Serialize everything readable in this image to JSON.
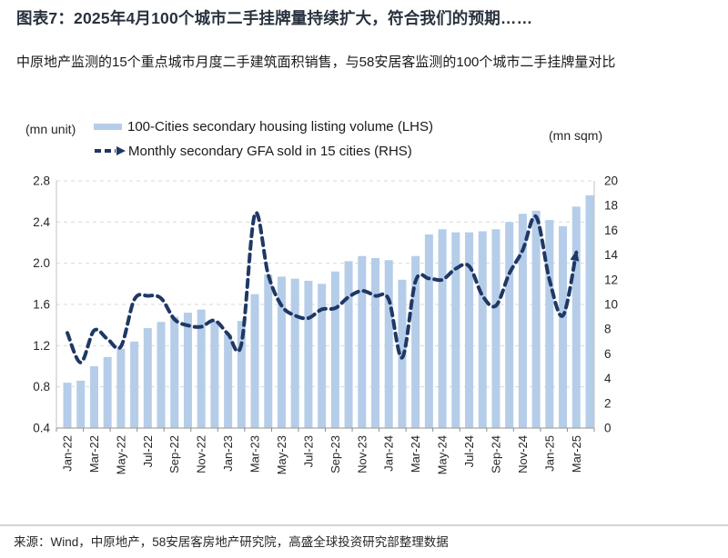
{
  "header": {
    "title": "图表7：2025年4月100个城市二手挂牌量持续扩大，符合我们的预期……",
    "subtitle": "中原地产监测的15个重点城市月度二手建筑面积销售，与58安居客监测的100个城市二手挂牌量对比"
  },
  "legend": {
    "items": [
      {
        "label": "100-Cities secondary housing listing volume (LHS)",
        "type": "bar",
        "color": "#b5cde9"
      },
      {
        "label": "Monthly secondary GFA sold in 15 cities (RHS)",
        "type": "dashed-line",
        "color": "#1f3864"
      }
    ]
  },
  "axes": {
    "left_unit": "(mn unit)",
    "right_unit": "(mn sqm)"
  },
  "chart_data": {
    "type": "bar+line",
    "x": [
      "Jan-22",
      "Feb-22",
      "Mar-22",
      "Apr-22",
      "May-22",
      "Jun-22",
      "Jul-22",
      "Aug-22",
      "Sep-22",
      "Oct-22",
      "Nov-22",
      "Dec-22",
      "Jan-23",
      "Feb-23",
      "Mar-23",
      "Apr-23",
      "May-23",
      "Jun-23",
      "Jul-23",
      "Aug-23",
      "Sep-23",
      "Oct-23",
      "Nov-23",
      "Dec-23",
      "Jan-24",
      "Feb-24",
      "Mar-24",
      "Apr-24",
      "May-24",
      "Jun-24",
      "Jul-24",
      "Aug-24",
      "Sep-24",
      "Oct-24",
      "Nov-24",
      "Dec-24",
      "Jan-25",
      "Feb-25",
      "Mar-25",
      "Apr-25"
    ],
    "x_tick_every": 2,
    "series": [
      {
        "name": "100-Cities secondary housing listing volume (LHS)",
        "type": "bar",
        "axis": "left",
        "color": "#b5cde9",
        "values": [
          0.84,
          0.86,
          1.0,
          1.09,
          1.17,
          1.24,
          1.37,
          1.43,
          1.48,
          1.52,
          1.55,
          1.44,
          1.31,
          1.44,
          1.7,
          1.89,
          1.87,
          1.85,
          1.83,
          1.8,
          1.92,
          2.02,
          2.07,
          2.05,
          2.03,
          1.84,
          2.07,
          2.28,
          2.33,
          2.3,
          2.3,
          2.31,
          2.33,
          2.4,
          2.48,
          2.51,
          2.42,
          2.36,
          2.55,
          2.66
        ]
      },
      {
        "name": "Monthly secondary GFA sold in 15 cities (RHS)",
        "type": "line",
        "axis": "right",
        "color": "#1f3864",
        "dashed": true,
        "arrow_end": true,
        "values": [
          7.7,
          5.3,
          7.9,
          7.2,
          6.6,
          10.4,
          10.7,
          10.5,
          8.8,
          8.3,
          8.2,
          8.7,
          7.6,
          6.8,
          17.3,
          12.4,
          9.9,
          9.1,
          8.9,
          9.6,
          9.7,
          10.6,
          11.1,
          10.7,
          10.4,
          5.7,
          11.9,
          12.1,
          12.0,
          12.9,
          13.1,
          10.7,
          9.9,
          12.5,
          14.4,
          17.1,
          12.0,
          9.1,
          14.2,
          null
        ]
      }
    ],
    "left_axis": {
      "label": "(mn unit)",
      "min": 0.4,
      "max": 2.8,
      "step": 0.4,
      "ticks": [
        "0.4",
        "0.8",
        "1.2",
        "1.6",
        "2.0",
        "2.4",
        "2.8"
      ]
    },
    "right_axis": {
      "label": "(mn sqm)",
      "min": 0,
      "max": 20,
      "step": 2,
      "ticks": [
        "0",
        "2",
        "4",
        "6",
        "8",
        "10",
        "12",
        "14",
        "16",
        "18",
        "20"
      ]
    },
    "grid": {
      "horizontal": "dashed",
      "color": "#d9d9d9"
    },
    "legend_position": "top"
  },
  "footer": {
    "source": "来源：Wind，中原地产，58安居客房地产研究院，高盛全球投资研究部整理数据"
  }
}
